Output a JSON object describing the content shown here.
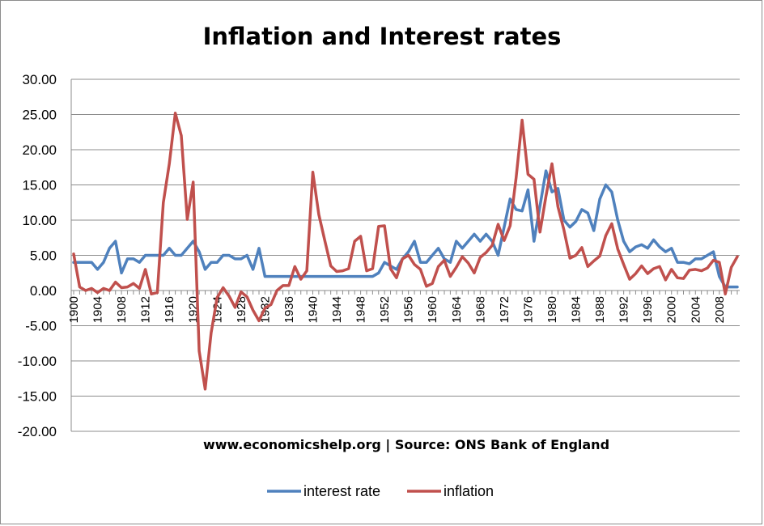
{
  "chart_data": {
    "type": "line",
    "title": "Inflation and Interest rates",
    "xlabel": "",
    "ylabel": "",
    "ylim": [
      -20,
      30
    ],
    "ytick_labels": [
      "30.00",
      "25.00",
      "20.00",
      "15.00",
      "10.00",
      "5.00",
      "0.00",
      "-5.00",
      "-10.00",
      "-15.00",
      "-20.00"
    ],
    "ytick_values": [
      30,
      25,
      20,
      15,
      10,
      5,
      0,
      -5,
      -10,
      -15,
      -20
    ],
    "xtick_labels": [
      "1900",
      "1904",
      "1908",
      "1912",
      "1916",
      "1920",
      "1924",
      "1928",
      "1932",
      "1936",
      "1940",
      "1944",
      "1948",
      "1952",
      "1956",
      "1960",
      "1964",
      "1968",
      "1972",
      "1976",
      "1980",
      "1984",
      "1988",
      "1992",
      "1996",
      "2000",
      "2004",
      "2008"
    ],
    "x": [
      1900,
      1901,
      1902,
      1903,
      1904,
      1905,
      1906,
      1907,
      1908,
      1909,
      1910,
      1911,
      1912,
      1913,
      1914,
      1915,
      1916,
      1917,
      1918,
      1919,
      1920,
      1921,
      1922,
      1923,
      1924,
      1925,
      1926,
      1927,
      1928,
      1929,
      1930,
      1931,
      1932,
      1933,
      1934,
      1935,
      1936,
      1937,
      1938,
      1939,
      1940,
      1941,
      1942,
      1943,
      1944,
      1945,
      1946,
      1947,
      1948,
      1949,
      1950,
      1951,
      1952,
      1953,
      1954,
      1955,
      1956,
      1957,
      1958,
      1959,
      1960,
      1961,
      1962,
      1963,
      1964,
      1965,
      1966,
      1967,
      1968,
      1969,
      1970,
      1971,
      1972,
      1973,
      1974,
      1975,
      1976,
      1977,
      1978,
      1979,
      1980,
      1981,
      1982,
      1983,
      1984,
      1985,
      1986,
      1987,
      1988,
      1989,
      1990,
      1991,
      1992,
      1993,
      1994,
      1995,
      1996,
      1997,
      1998,
      1999,
      2000,
      2001,
      2002,
      2003,
      2004,
      2005,
      2006,
      2007,
      2008,
      2009,
      2010,
      2011
    ],
    "series": [
      {
        "name": "interest rate",
        "color": "#4f81bd",
        "values": [
          4,
          4,
          4,
          4,
          3,
          4,
          6,
          7,
          2.5,
          4.5,
          4.5,
          4,
          5,
          5,
          5,
          5,
          6,
          5,
          5,
          6,
          7,
          5.5,
          3,
          4,
          4,
          5,
          5,
          4.5,
          4.5,
          5,
          3,
          6,
          2,
          2,
          2,
          2,
          2,
          2,
          2,
          2,
          2,
          2,
          2,
          2,
          2,
          2,
          2,
          2,
          2,
          2,
          2,
          2.5,
          4,
          3.5,
          3,
          4.5,
          5.5,
          7,
          4,
          4,
          5,
          6,
          4.5,
          4,
          7,
          6,
          7,
          8,
          7,
          8,
          7,
          5,
          9,
          13,
          11.5,
          11.3,
          14.3,
          7,
          12,
          17,
          14,
          14.5,
          10,
          9,
          9.8,
          11.5,
          11,
          8.5,
          13,
          15,
          14,
          10,
          7,
          5.5,
          6.2,
          6.5,
          6,
          7.2,
          6.2,
          5.5,
          6,
          4,
          4,
          3.8,
          4.5,
          4.5,
          5,
          5.5,
          2,
          0.5,
          0.5,
          0.5
        ]
      },
      {
        "name": "inflation",
        "color": "#c0504d",
        "values": [
          5.2,
          0.5,
          0,
          0.3,
          -0.3,
          0.3,
          0,
          1.2,
          0.4,
          0.5,
          1,
          0.3,
          3,
          -0.5,
          -0.3,
          12.5,
          18,
          25.2,
          22,
          10.1,
          15.4,
          -8.6,
          -14,
          -6,
          -1,
          0.4,
          -0.8,
          -2.4,
          -0.2,
          -0.9,
          -2.8,
          -4.3,
          -2.5,
          -2,
          0,
          0.7,
          0.7,
          3.4,
          1.6,
          2.8,
          16.8,
          10.8,
          7.1,
          3.5,
          2.7,
          2.8,
          3.1,
          7,
          7.7,
          2.8,
          3.1,
          9.1,
          9.2,
          3.1,
          1.8,
          4.5,
          5,
          3.7,
          3,
          0.6,
          1,
          3.4,
          4.3,
          2,
          3.3,
          4.8,
          3.9,
          2.5,
          4.7,
          5.4,
          6.4,
          9.4,
          7.1,
          9.2,
          16,
          24.2,
          16.5,
          15.8,
          8.3,
          13.4,
          18,
          11.9,
          8.6,
          4.6,
          5,
          6.1,
          3.4,
          4.2,
          4.9,
          7.8,
          9.5,
          5.9,
          3.7,
          1.6,
          2.4,
          3.5,
          2.4,
          3.1,
          3.4,
          1.5,
          3,
          1.8,
          1.7,
          2.9,
          3,
          2.8,
          3.2,
          4.3,
          4,
          -0.5,
          3.3,
          4.8
        ]
      }
    ],
    "annotation": "www.economicshelp.org | Source: ONS Bank of England",
    "legend_position": "bottom",
    "grid": "horizontal"
  }
}
